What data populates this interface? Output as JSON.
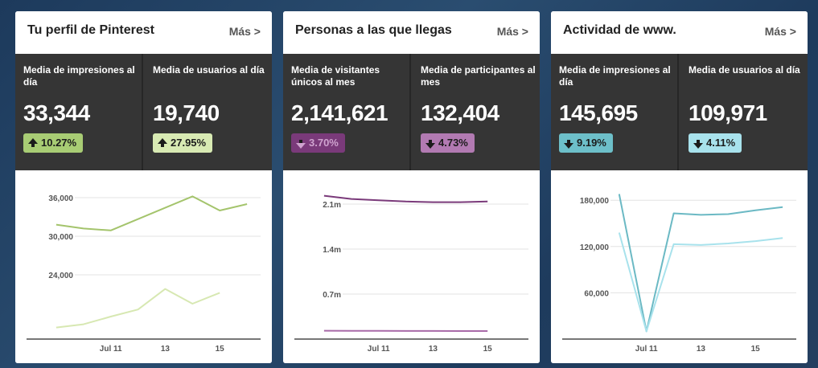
{
  "cards": [
    {
      "title": "Tu perfil de Pinterest",
      "more": "Más >",
      "stats": [
        {
          "label": "Media de impresiones al día",
          "value": "33,344",
          "change": "10.27%",
          "direction": "up",
          "badge_color": "#a8cc74",
          "text_color": "#1b1b1b"
        },
        {
          "label": "Media de usuarios al día",
          "value": "19,740",
          "change": "27.95%",
          "direction": "up",
          "badge_color": "#d8eab3",
          "text_color": "#1b1b1b"
        }
      ]
    },
    {
      "title": "Personas a las que llegas",
      "more": "Más >",
      "stats": [
        {
          "label": "Media de visitantes únicos al mes",
          "value": "2,141,621",
          "change": "3.70%",
          "direction": "down",
          "badge_color": "#7a3a7a",
          "text_color": "#cfa3cf"
        },
        {
          "label": "Media de participantes al mes",
          "value": "132,404",
          "change": "4.73%",
          "direction": "down",
          "badge_color": "#b27ab2",
          "text_color": "#1b1b1b"
        }
      ]
    },
    {
      "title": "Actividad de www.",
      "more": "Más >",
      "stats": [
        {
          "label": "Media de impresiones al día",
          "value": "145,695",
          "change": "9.19%",
          "direction": "down",
          "badge_color": "#6dbfc9",
          "text_color": "#1b1b1b"
        },
        {
          "label": "Media de usuarios al día",
          "value": "109,971",
          "change": "4.11%",
          "direction": "down",
          "badge_color": "#a8e2ec",
          "text_color": "#1b1b1b"
        }
      ]
    }
  ],
  "chart_data": [
    {
      "type": "line",
      "x": [
        9,
        10,
        11,
        12,
        13,
        14,
        15,
        16
      ],
      "xticks": [
        11,
        13,
        15
      ],
      "xtick_labels": [
        "Jul 11",
        "13",
        "15"
      ],
      "yticks": [
        24000,
        30000,
        36000
      ],
      "ytick_labels": [
        "24,000",
        "30,000",
        "36,000"
      ],
      "ylim": [
        14000,
        38000
      ],
      "series": [
        {
          "values": [
            31800,
            31200,
            30900,
            null,
            36200,
            34000,
            35000
          ],
          "x": [
            9,
            10,
            11,
            null,
            14,
            15,
            16
          ],
          "color": "#a4c46c"
        },
        {
          "values": [
            15800,
            16300,
            17500,
            18600,
            21800,
            19500,
            21200
          ],
          "x": [
            9,
            10,
            11,
            12,
            13,
            14,
            15
          ],
          "color": "#d7e8b2"
        }
      ]
    },
    {
      "type": "line",
      "x": [
        9,
        10,
        11,
        12,
        13,
        14,
        15,
        16
      ],
      "xticks": [
        11,
        13,
        15
      ],
      "xtick_labels": [
        "Jul 11",
        "13",
        "15"
      ],
      "yticks": [
        700000,
        1400000,
        2100000
      ],
      "ytick_labels": [
        "0.7m",
        "1.4m",
        "2.1m"
      ],
      "ylim": [
        0,
        2400000
      ],
      "series": [
        {
          "values": [
            2230000,
            2180000,
            2160000,
            2140000,
            2130000,
            2130000,
            2140000
          ],
          "x": [
            9,
            10,
            11,
            12,
            13,
            14,
            15
          ],
          "color": "#7a3a7a"
        },
        {
          "values": [
            130000,
            128000,
            127000,
            126000,
            126000,
            125000,
            125000
          ],
          "x": [
            9,
            10,
            11,
            12,
            13,
            14,
            15
          ],
          "color": "#a86aa8"
        }
      ]
    },
    {
      "type": "line",
      "x": [
        9,
        10,
        11,
        12,
        13,
        14,
        15,
        16
      ],
      "xticks": [
        11,
        13,
        15
      ],
      "xtick_labels": [
        "Jul 11",
        "13",
        "15"
      ],
      "yticks": [
        60000,
        120000,
        180000
      ],
      "ytick_labels": [
        "60,000",
        "120,000",
        "180,000"
      ],
      "ylim": [
        0,
        200000
      ],
      "series": [
        {
          "values": [
            188000,
            10000,
            163000,
            161000,
            162000,
            167000,
            171000
          ],
          "x": [
            10,
            11,
            12,
            13,
            14,
            15,
            16
          ],
          "color": "#6bb9c4"
        },
        {
          "values": [
            138000,
            10000,
            123000,
            122000,
            124000,
            127000,
            131000
          ],
          "x": [
            10,
            11,
            12,
            13,
            14,
            15,
            16
          ],
          "color": "#a8e2ec"
        }
      ]
    }
  ]
}
